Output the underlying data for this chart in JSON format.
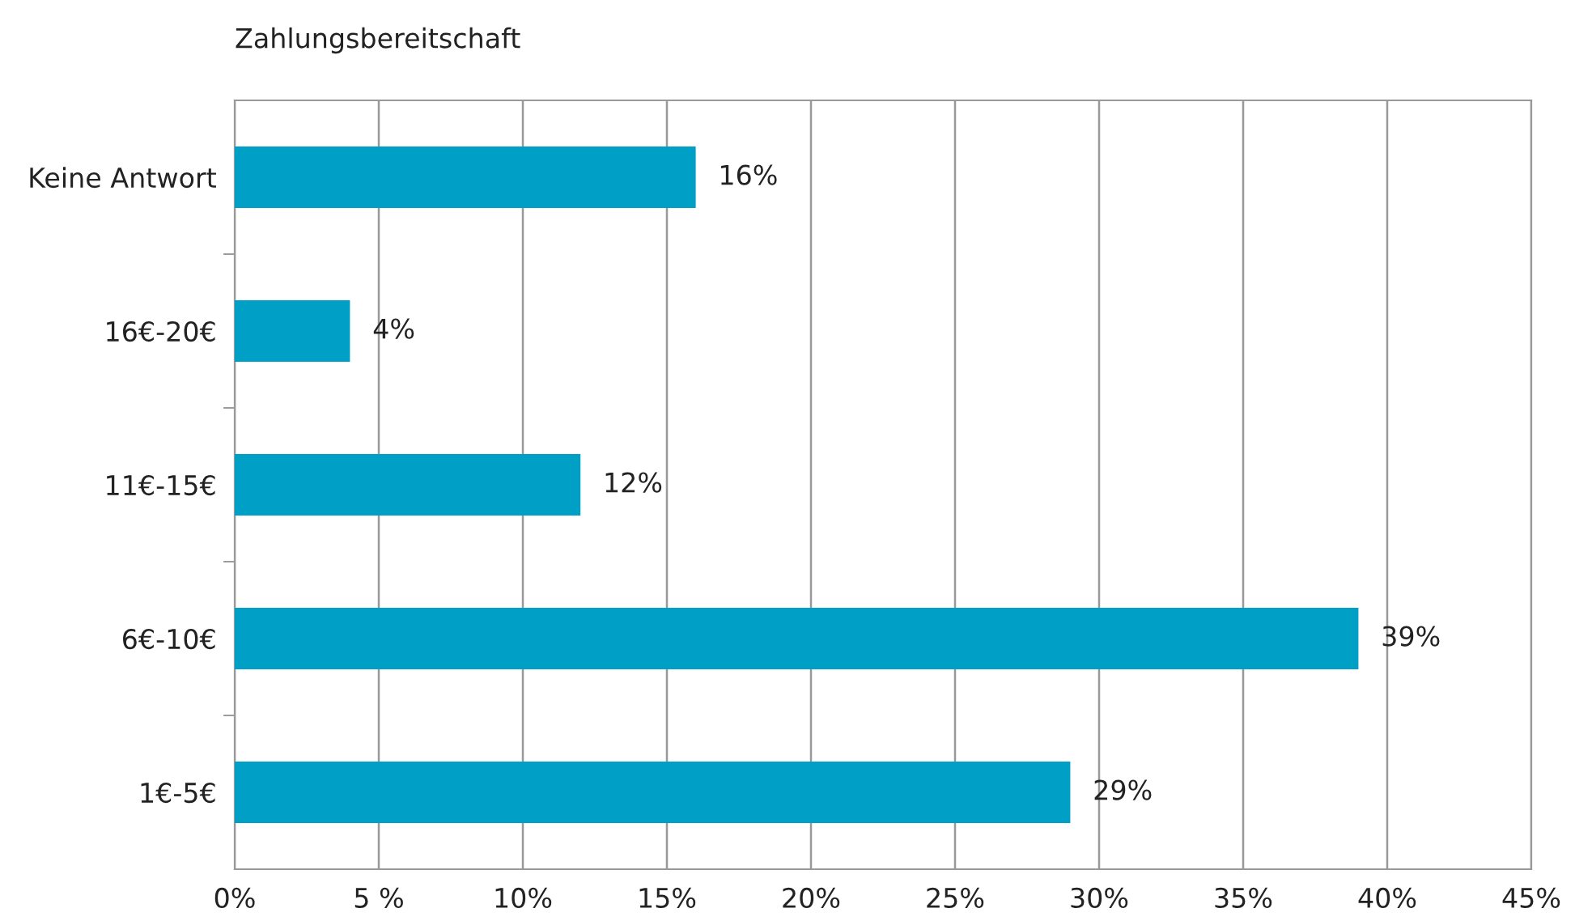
{
  "chart_data": {
    "type": "bar",
    "orientation": "horizontal",
    "title": "Zahlungsbereitschaft",
    "categories": [
      "Keine Antwort",
      "16€-20€",
      "11€-15€",
      "6€-10€",
      "1€-5€"
    ],
    "values": [
      16,
      4,
      12,
      39,
      29
    ],
    "color": "#009fc6",
    "value_labels": [
      "16%",
      "4%",
      "12%",
      "39%",
      "29%"
    ],
    "xlim": [
      0,
      45
    ],
    "xticks": [
      {
        "value": 0,
        "label": "0%"
      },
      {
        "value": 5,
        "label": "5 %"
      },
      {
        "value": 10,
        "label": "10%"
      },
      {
        "value": 15,
        "label": "15%"
      },
      {
        "value": 20,
        "label": "20%"
      },
      {
        "value": 25,
        "label": "25%"
      },
      {
        "value": 30,
        "label": "30%"
      },
      {
        "value": 35,
        "label": "35%"
      },
      {
        "value": 40,
        "label": "40%"
      },
      {
        "value": 45,
        "label": "45%"
      }
    ],
    "grid": "x",
    "legend": false
  }
}
